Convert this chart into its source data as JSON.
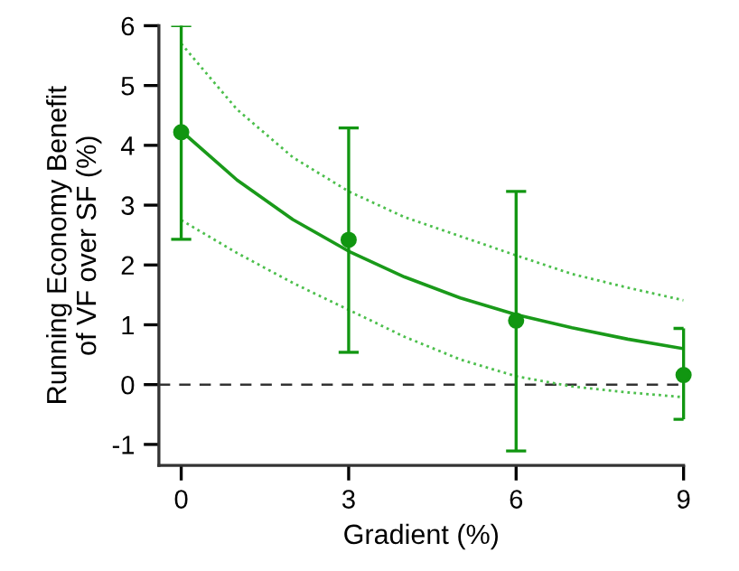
{
  "chart_data": {
    "type": "scatter",
    "xlabel": "Gradient (%)",
    "ylabel": "Running Economy Benefit\nof VF over SF (%)",
    "xlim": [
      -0.4,
      9
    ],
    "ylim": [
      -1.35,
      6
    ],
    "xticks": [
      0,
      3,
      6,
      9
    ],
    "yticks": [
      -1,
      0,
      1,
      2,
      3,
      4,
      5,
      6
    ],
    "grid": false,
    "legend": false,
    "series": [
      {
        "type": "line",
        "color": "#4cbf4c",
        "line_style": "dotted",
        "marker": "none",
        "x": [
          0,
          1,
          2,
          3,
          4,
          5,
          6,
          7,
          8,
          9
        ],
        "values": [
          5.7,
          4.6,
          3.8,
          3.23,
          2.8,
          2.48,
          2.16,
          1.85,
          1.62,
          1.41
        ]
      },
      {
        "type": "line",
        "color": "#4cbf4c",
        "line_style": "dotted",
        "marker": "none",
        "x": [
          0,
          1,
          2,
          3,
          4,
          5,
          6,
          7,
          8,
          9
        ],
        "values": [
          2.75,
          2.2,
          1.7,
          1.25,
          0.8,
          0.42,
          0.14,
          -0.03,
          -0.13,
          -0.21
        ]
      },
      {
        "type": "line",
        "color": "#1a9a1a",
        "line_style": "solid",
        "marker": "none",
        "x": [
          0,
          1,
          2,
          3,
          4,
          5,
          6,
          7,
          8,
          9
        ],
        "values": [
          4.24,
          3.42,
          2.76,
          2.23,
          1.8,
          1.45,
          1.17,
          0.95,
          0.76,
          0.6
        ]
      },
      {
        "color": "#119611",
        "marker": "circle",
        "x": [
          0,
          3,
          6,
          9
        ],
        "values": [
          4.22,
          2.42,
          1.07,
          0.16
        ],
        "errors": [
          [
            2.43,
            6.0
          ],
          [
            0.54,
            4.29
          ],
          [
            -1.11,
            3.23
          ],
          [
            -0.58,
            0.94
          ]
        ]
      }
    ],
    "ref_lines": [
      {
        "axis": "y",
        "value": 0,
        "color": "#333333",
        "line_style": "dashed"
      }
    ]
  }
}
